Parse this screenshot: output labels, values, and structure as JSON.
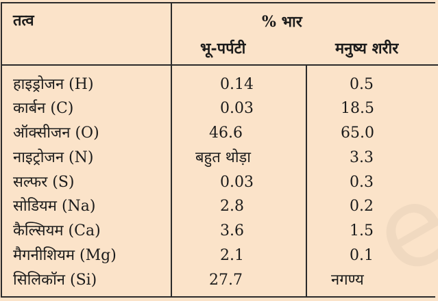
{
  "header": {
    "element": "तत्व",
    "weight_percent": "% भार",
    "earth_crust": "भू-पर्पटी",
    "human_body": "मनुष्य शरीर"
  },
  "rows": [
    {
      "element": "हाइड्रोजन (H)",
      "crust": "0.14",
      "body": "0.5"
    },
    {
      "element": "कार्बन  (C)",
      "crust": "0.03",
      "body": "18.5"
    },
    {
      "element": "ऑक्सीजन (O)",
      "crust": "46.6",
      "body": "65.0"
    },
    {
      "element": "नाइट्रोजन (N)",
      "crust": "बहुत थोड़ा",
      "body": "3.3"
    },
    {
      "element": "सल्फर (S)",
      "crust": "0.03",
      "body": "0.3"
    },
    {
      "element": "सोडियम (Na)",
      "crust": "2.8",
      "body": "0.2"
    },
    {
      "element": "कैल्सियम (Ca)",
      "crust": "3.6",
      "body": "1.5"
    },
    {
      "element": "मैगनीशियम (Mg)",
      "crust": "2.1",
      "body": "0.1"
    },
    {
      "element": "सिलिकॉन (Si)",
      "crust": "27.7",
      "body": "नगण्य"
    }
  ]
}
